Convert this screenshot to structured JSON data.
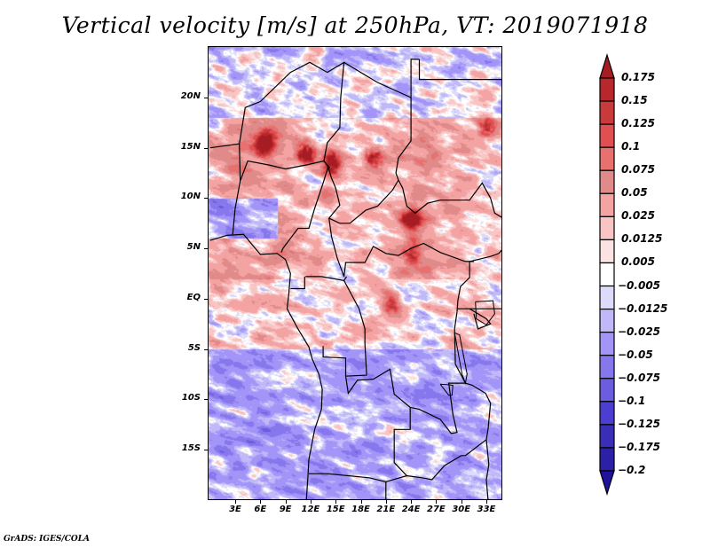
{
  "chart_data": {
    "type": "heatmap",
    "title": "Vertical velocity [m/s] at 250hPa, VT: 2019071918",
    "variable": "Vertical velocity",
    "units": "m/s",
    "level": "250hPa",
    "valid_time": "2019071918",
    "xlabel": "",
    "ylabel": "",
    "lon_range": [
      0,
      35
    ],
    "lat_range": [
      -20,
      25
    ],
    "x_ticks": [
      "3E",
      "6E",
      "9E",
      "12E",
      "15E",
      "18E",
      "21E",
      "24E",
      "27E",
      "30E",
      "33E"
    ],
    "x_tick_values": [
      3,
      6,
      9,
      12,
      15,
      18,
      21,
      24,
      27,
      30,
      33
    ],
    "y_ticks": [
      "20N",
      "15N",
      "10N",
      "5N",
      "EQ",
      "5S",
      "10S",
      "15S"
    ],
    "y_tick_values": [
      20,
      15,
      10,
      5,
      0,
      -5,
      -10,
      -15
    ],
    "legend": {
      "placement": "right",
      "orientation": "vertical",
      "levels": [
        "0.175",
        "0.15",
        "0.125",
        "0.1",
        "0.075",
        "0.05",
        "0.025",
        "0.0125",
        "0.005",
        "-0.005",
        "-0.0125",
        "-0.025",
        "-0.05",
        "-0.075",
        "-0.1",
        "-0.125",
        "-0.175",
        "-0.2"
      ],
      "colors": [
        "#a61c23",
        "#b8272c",
        "#c93a3d",
        "#e04f52",
        "#e8706f",
        "#e08a8a",
        "#f4a3a3",
        "#f8c4c4",
        "#fbe3e3",
        "#ffffff",
        "#dcdcfa",
        "#c0b8f8",
        "#a395f8",
        "#8777ec",
        "#6b5ddd",
        "#4b3ed0",
        "#3a2eb8",
        "#2c20a6",
        "#20129a"
      ],
      "extend": "both"
    },
    "features": {
      "positive_maxima": [
        "Sahel near 15N 5-12E",
        "Lake Chad region ~13N 14E",
        "~14N 19E",
        "South Sudan ~8N 24E",
        "Congo basin ~1S 21E"
      ],
      "general_pattern": "Mostly weak positive (pink) north of ~5S over land, weak negative (blue/white) south of 5S and over ocean"
    },
    "grid": false,
    "map_borders": true
  },
  "footer": {
    "credit": "GrADS: IGES/COLA"
  }
}
